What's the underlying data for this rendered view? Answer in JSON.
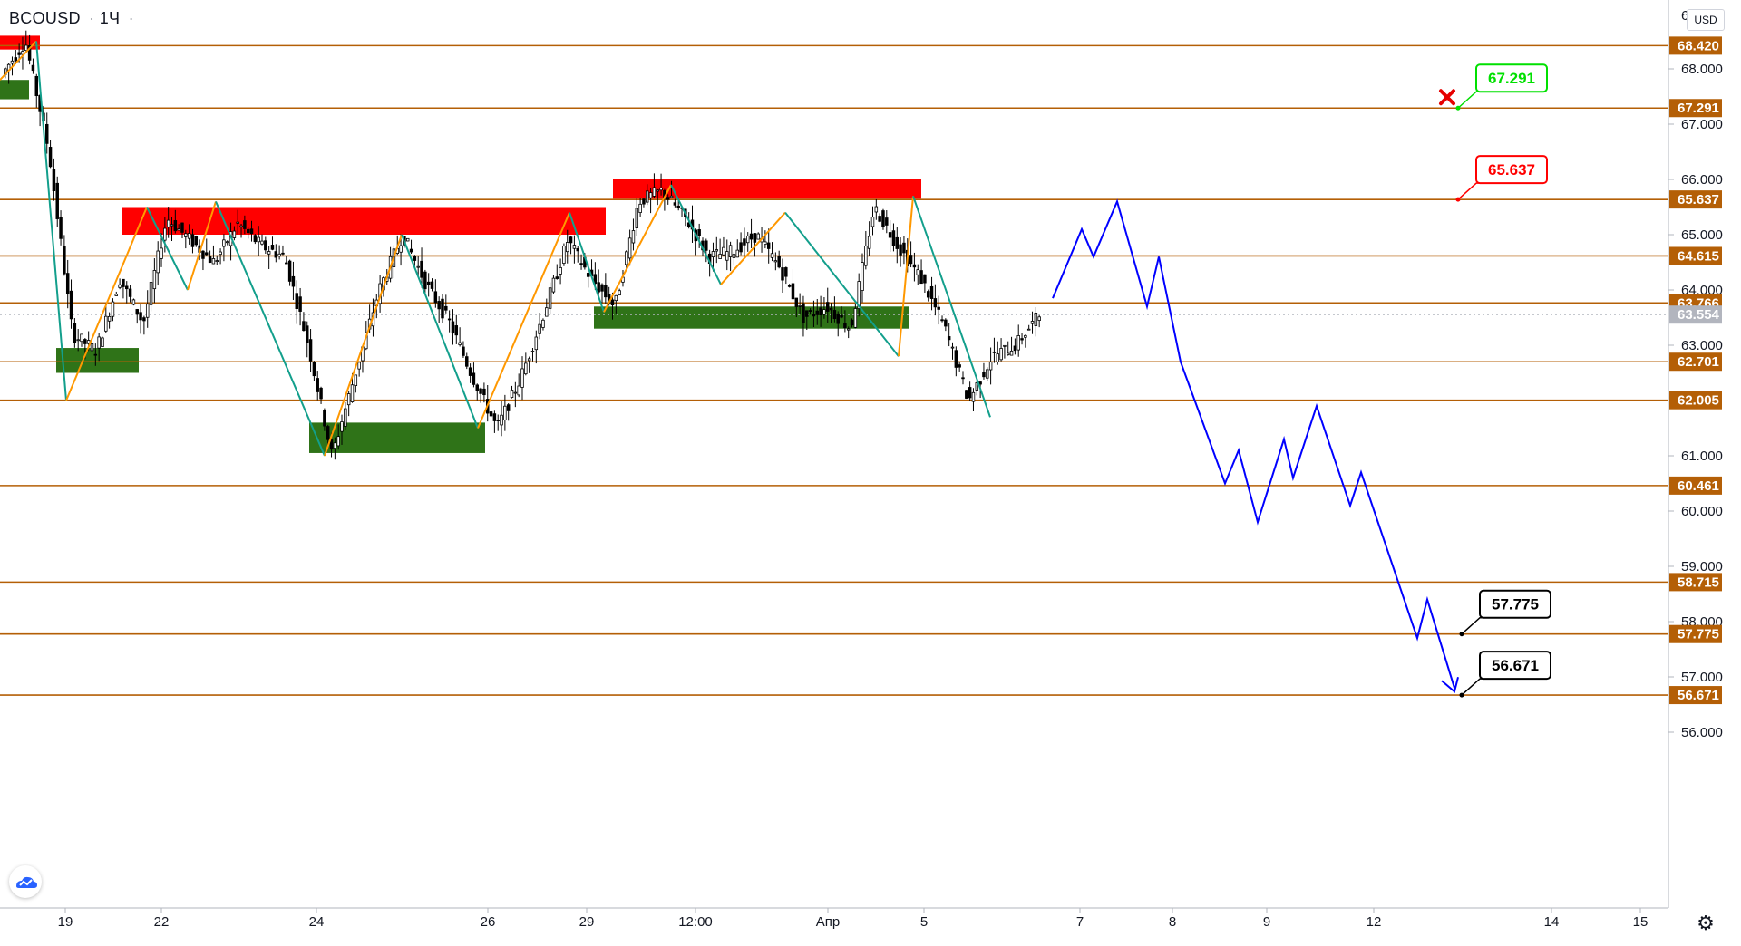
{
  "header": {
    "symbol": "BCOUSD",
    "interval": "1Ч",
    "separator_icon": "dot"
  },
  "currency_badge": "USD",
  "icons": {
    "logo": "tradingview-cloud-icon",
    "settings": "gear-icon",
    "invalid_marker": "red-cross-icon"
  },
  "colors": {
    "level_line": "#b45f06",
    "level_badge": "#b45f06",
    "current_price_badge": "#b2b5be",
    "forecast": "#0000ff",
    "zigzag_up": "#ff9800",
    "zigzag_down": "#139f8c",
    "supply_zone": "#ff0000",
    "demand_zone": "#2f7318",
    "candle": "#000000",
    "callout_green": "#00e000",
    "callout_red": "#ff0000",
    "callout_black": "#000000"
  },
  "chart_data": {
    "type": "candlestick",
    "y_axis": {
      "ylim": [
        55.8,
        69.2
      ],
      "tick_labels": [
        "68.000",
        "67.000",
        "66.000",
        "65.000",
        "64.000",
        "63.000",
        "61.000",
        "60.000",
        "59.000",
        "58.000",
        "57.000",
        "56.000"
      ],
      "tick_values": [
        68,
        67,
        66,
        65,
        64,
        63,
        61,
        60,
        59,
        58,
        57,
        56
      ],
      "top_partial_label": "6"
    },
    "x_axis": {
      "tick_labels": [
        "19",
        "22",
        "24",
        "26",
        "29",
        "12:00",
        "Апр",
        "5",
        "7",
        "8",
        "9",
        "12",
        "14",
        "15"
      ]
    },
    "current_price": {
      "value": 63.554,
      "label": "63.554"
    },
    "levels": [
      {
        "value": 68.42,
        "label": "68.420"
      },
      {
        "value": 67.291,
        "label": "67.291"
      },
      {
        "value": 65.637,
        "label": "65.637"
      },
      {
        "value": 64.615,
        "label": "64.615"
      },
      {
        "value": 63.766,
        "label": "63.766"
      },
      {
        "value": 62.701,
        "label": "62.701"
      },
      {
        "value": 62.005,
        "label": "62.005"
      },
      {
        "value": 60.461,
        "label": "60.461"
      },
      {
        "value": 58.715,
        "label": "58.715"
      },
      {
        "value": 57.775,
        "label": "57.775"
      },
      {
        "value": 56.671,
        "label": "56.671"
      }
    ],
    "callouts": [
      {
        "label": "67.291",
        "value": 67.291,
        "style": "green"
      },
      {
        "label": "65.637",
        "value": 65.637,
        "style": "red"
      },
      {
        "label": "57.775",
        "value": 57.775,
        "style": "black"
      },
      {
        "label": "56.671",
        "value": 56.671,
        "style": "black"
      }
    ],
    "supply_zones": [
      {
        "top": 68.6,
        "bottom": 68.35
      },
      {
        "top": 65.5,
        "bottom": 65.0
      },
      {
        "top": 66.0,
        "bottom": 65.65
      }
    ],
    "demand_zones": [
      {
        "top": 67.8,
        "bottom": 67.45
      },
      {
        "top": 62.95,
        "bottom": 62.5
      },
      {
        "top": 61.6,
        "bottom": 61.05
      },
      {
        "top": 63.7,
        "bottom": 63.3
      }
    ],
    "zigzag_pivots": [
      67.8,
      68.5,
      62.0,
      65.5,
      64.0,
      65.6,
      61.0,
      65.0,
      61.5,
      65.4,
      63.6,
      65.9,
      64.1,
      65.4,
      62.8,
      65.7,
      61.7
    ],
    "price_path": [
      67.9,
      68.5,
      66.5,
      63.2,
      62.9,
      64.2,
      63.4,
      65.3,
      64.9,
      64.5,
      65.2,
      64.8,
      64.6,
      63.0,
      61.0,
      62.5,
      64.0,
      65.0,
      64.1,
      63.4,
      62.4,
      61.5,
      62.4,
      63.6,
      64.9,
      64.2,
      63.7,
      65.6,
      65.8,
      65.3,
      64.6,
      64.7,
      65.0,
      64.4,
      63.5,
      63.7,
      63.3,
      65.5,
      64.8,
      64.2,
      63.3,
      62.0,
      62.8,
      63.0,
      63.55
    ],
    "forecast_path": [
      63.85,
      65.1,
      64.6,
      65.6,
      63.7,
      64.6,
      62.7,
      60.5,
      61.1,
      59.8,
      61.3,
      60.6,
      61.9,
      60.1,
      60.7,
      57.7,
      58.4,
      56.8
    ]
  }
}
